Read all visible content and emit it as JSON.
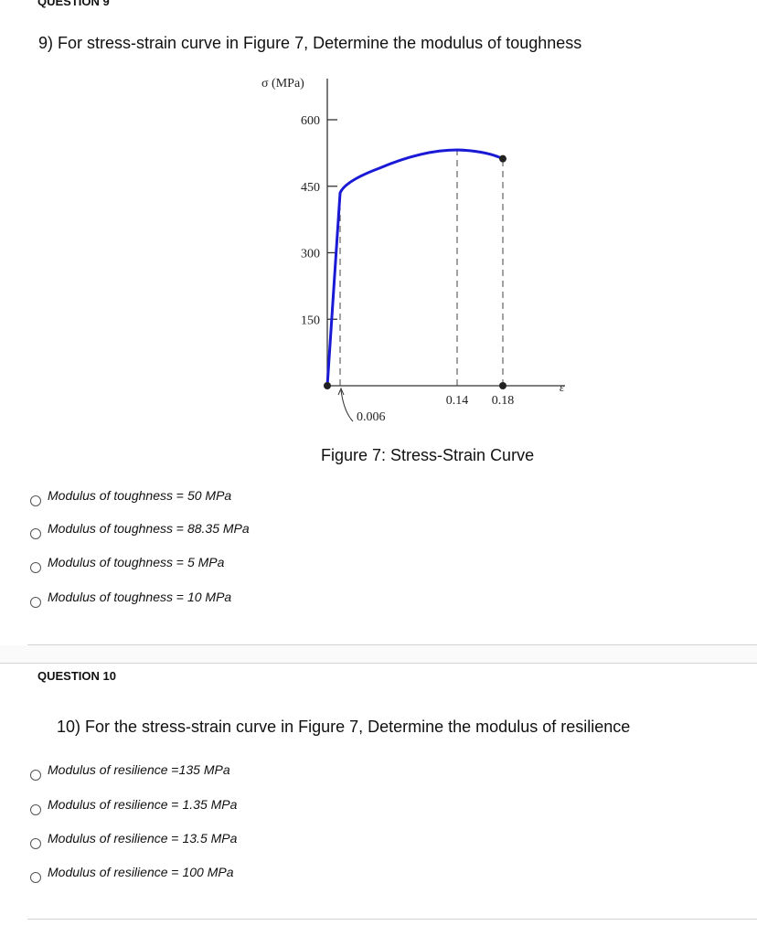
{
  "q9": {
    "header": "QUESTION 9",
    "text": "9)   For stress-strain curve in Figure 7, Determine the modulus of toughness",
    "options": [
      {
        "label": "Modulus of toughness",
        "eq": " = ",
        "value": "50 MPa"
      },
      {
        "label": "Modulus of toughness",
        "eq": " = ",
        "value": "88.35 MPa"
      },
      {
        "label": "Modulus of toughness",
        "eq": " = ",
        "value": "5 MPa"
      },
      {
        "label": "Modulus of toughness",
        "eq": " = ",
        "value": "10 MPa"
      }
    ]
  },
  "figure_caption": "Figure 7: Stress-Strain Curve",
  "q10": {
    "header": "QUESTION 10",
    "text": "10) For the stress-strain curve in Figure 7, Determine the modulus of resilience",
    "options": [
      {
        "label": "Modulus of resilience",
        "eq": " =",
        "value": "135 MPa"
      },
      {
        "label": "Modulus of resilience",
        "eq": " = ",
        "value": "1.35 MPa"
      },
      {
        "label": "Modulus of resilience",
        "eq": " = ",
        "value": "13.5 MPa"
      },
      {
        "label": "Modulus of resilience",
        "eq": " = ",
        "value": "100 MPa"
      }
    ]
  },
  "chart_data": {
    "type": "line",
    "ylabel": "σ (MPa)",
    "xlabel": "ε",
    "yticks": [
      "600",
      "450",
      "300",
      "150"
    ],
    "ytick_values": [
      600,
      450,
      300,
      150
    ],
    "xtick_labels": [
      "0.006",
      "0.14",
      "0.18"
    ],
    "xtick_values": [
      0.006,
      0.14,
      0.18
    ],
    "ylim": [
      0,
      650
    ],
    "series": [
      {
        "color": "#1a1ad6",
        "points": [
          [
            0,
            0
          ],
          [
            0.006,
            435
          ],
          [
            0.03,
            475
          ],
          [
            0.07,
            510
          ],
          [
            0.14,
            532
          ],
          [
            0.18,
            512
          ]
        ]
      }
    ],
    "markers": [
      [
        0,
        0
      ],
      [
        0.18,
        0
      ],
      [
        0.18,
        512
      ]
    ],
    "dashed_verticals": [
      0.006,
      0.14,
      0.18
    ],
    "grid": false
  }
}
